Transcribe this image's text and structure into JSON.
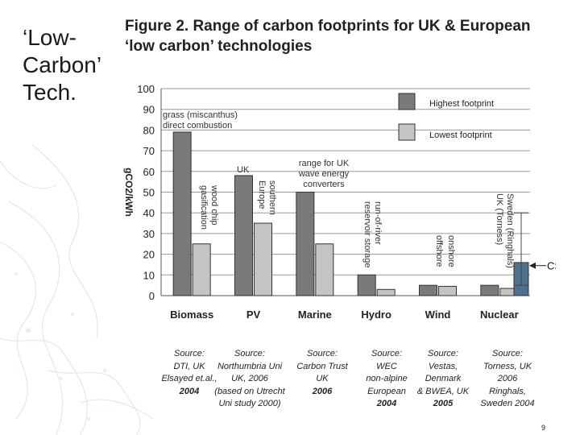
{
  "slide": {
    "title": "‘Low-\nCarbon’\nTech.",
    "page_number": "9"
  },
  "chart_data": {
    "type": "bar",
    "title": "Figure 2. Range of carbon footprints for UK & European\n‘low carbon’ technologies",
    "ylabel": "gCO2/kWh",
    "ylim": [
      0,
      100
    ],
    "yticks": [
      0,
      10,
      20,
      30,
      40,
      50,
      60,
      70,
      80,
      90,
      100
    ],
    "categories": [
      "Biomass",
      "PV",
      "Marine",
      "Hydro",
      "Wind",
      "Nuclear"
    ],
    "series": [
      {
        "name": "Highest footprint",
        "color": "#7a7a7a",
        "values": [
          79,
          58,
          50,
          10,
          5,
          5
        ]
      },
      {
        "name": "Lowest footprint",
        "color": "#c4c4c4",
        "values": [
          25,
          35,
          25,
          3,
          4.5,
          3.5
        ]
      }
    ],
    "annotations": [
      "grass (miscanthus)\ndirect combustion",
      "wood chip\ngasification",
      "UK",
      "southern\nEurope",
      "range for UK\nwave energy\nconverters",
      "run-of-river\nreservoir storage",
      "offshore",
      "onshore",
      "Sweden (Ringhals)\nUK (Torness)"
    ],
    "extra_marker": {
      "label": "CSD",
      "value": 16,
      "color": "#4e7190"
    }
  },
  "sources": [
    {
      "text": "Source:\nDTI, UK\nElsayed et.al.,",
      "year": "2004"
    },
    {
      "text": "Source:\nNorthumbria Uni\nUK, 2006\n(based on Utrecht\nUni study 2000)",
      "year": ""
    },
    {
      "text": "Source:\nCarbon Trust\nUK",
      "year": "2006"
    },
    {
      "text": "Source:\nWEC\nnon-alpine\nEuropean",
      "year": "2004"
    },
    {
      "text": "Source:\nVestas,\nDenmark\n& BWEA, UK",
      "year": "2005"
    },
    {
      "text": "Source:\nTorness, UK\n2006\nRinghals,\nSweden 2004",
      "year": ""
    }
  ]
}
